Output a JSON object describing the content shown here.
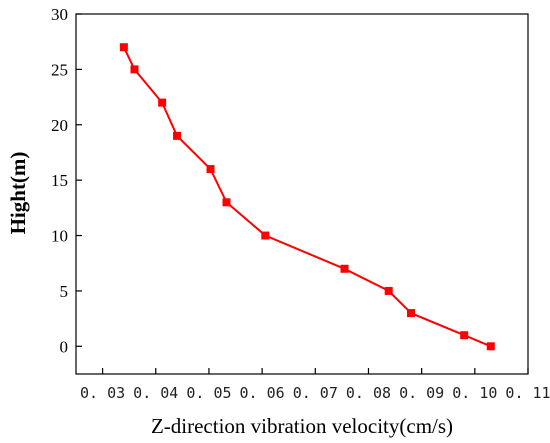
{
  "chart_data": {
    "type": "line",
    "title": "",
    "xlabel": "Z-direction vibration velocity(cm/s)",
    "ylabel": "Hight(m)",
    "xlim": [
      0.025,
      0.11
    ],
    "ylim": [
      -2.5,
      30
    ],
    "x_ticks": [
      0.03,
      0.04,
      0.05,
      0.06,
      0.07,
      0.08,
      0.09,
      0.1,
      0.11
    ],
    "x_tick_labels": [
      "0. 03",
      "0. 04",
      "0. 05",
      "0. 06",
      "0. 07",
      "0. 08",
      "0. 09",
      "0. 10",
      "0. 11"
    ],
    "y_ticks": [
      0,
      5,
      10,
      15,
      20,
      25,
      30
    ],
    "y_tick_labels": [
      "0",
      "5",
      "10",
      "15",
      "20",
      "25",
      "30"
    ],
    "grid": false,
    "series": [
      {
        "color": "#ff0000",
        "marker": "square",
        "x": [
          0.103,
          0.098,
          0.088,
          0.0838,
          0.0755,
          0.0606,
          0.0533,
          0.0503,
          0.044,
          0.0412,
          0.036,
          0.034
        ],
        "y": [
          0,
          1,
          3,
          5,
          7,
          10,
          13,
          16,
          19,
          22,
          25,
          27
        ]
      }
    ]
  }
}
